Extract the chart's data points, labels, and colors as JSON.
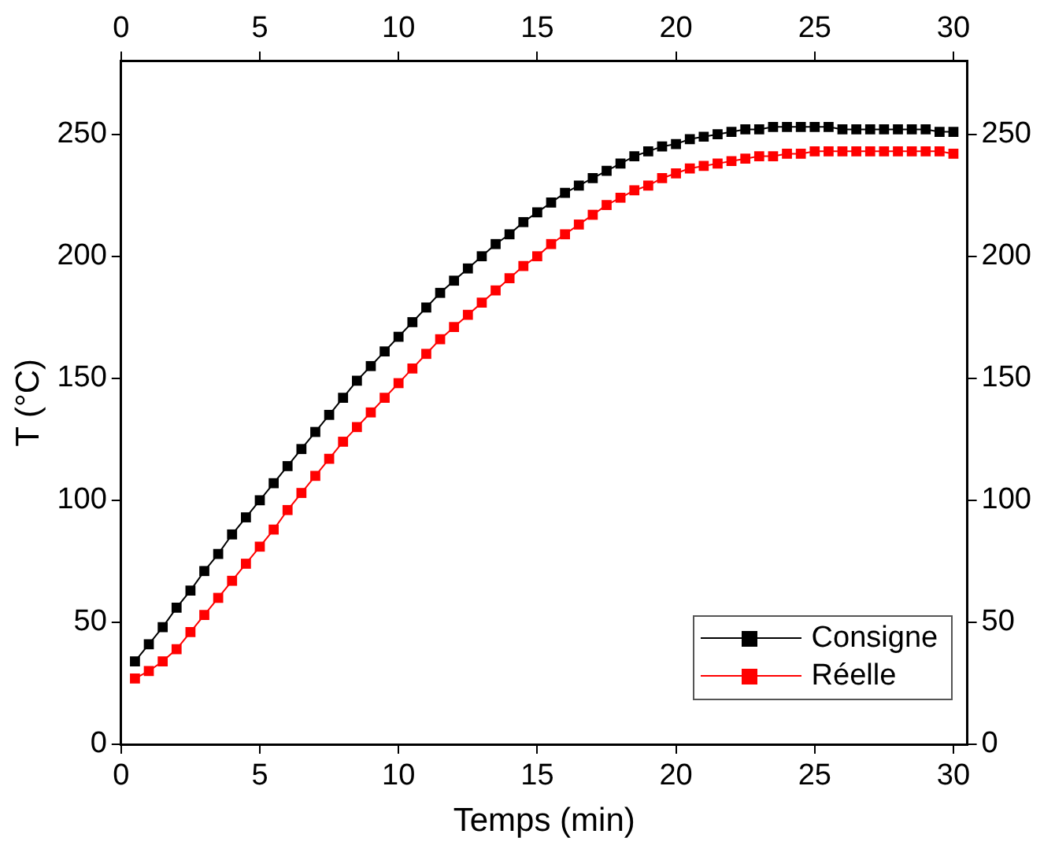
{
  "chart_data": {
    "type": "line",
    "xlabel": "Temps (min)",
    "ylabel": "T (°C)",
    "x": [
      0.5,
      1,
      1.5,
      2,
      2.5,
      3,
      3.5,
      4,
      4.5,
      5,
      5.5,
      6,
      6.5,
      7,
      7.5,
      8,
      8.5,
      9,
      9.5,
      10,
      10.5,
      11,
      11.5,
      12,
      12.5,
      13,
      13.5,
      14,
      14.5,
      15,
      15.5,
      16,
      16.5,
      17,
      17.5,
      18,
      18.5,
      19,
      19.5,
      20,
      20.5,
      21,
      21.5,
      22,
      22.5,
      23,
      23.5,
      24,
      24.5,
      25,
      25.5,
      26,
      26.5,
      27,
      27.5,
      28,
      28.5,
      29,
      29.5,
      30
    ],
    "series": [
      {
        "name": "Consigne",
        "color": "#000000",
        "values": [
          34,
          41,
          48,
          56,
          63,
          71,
          78,
          86,
          93,
          100,
          107,
          114,
          121,
          128,
          135,
          142,
          149,
          155,
          161,
          167,
          173,
          179,
          185,
          190,
          195,
          200,
          205,
          209,
          214,
          218,
          222,
          226,
          229,
          232,
          235,
          238,
          241,
          243,
          245,
          246,
          248,
          249,
          250,
          251,
          252,
          252,
          253,
          253,
          253,
          253,
          253,
          252,
          252,
          252,
          252,
          252,
          252,
          252,
          251,
          251
        ]
      },
      {
        "name": "Réelle",
        "color": "#ff0000",
        "values": [
          27,
          30,
          34,
          39,
          46,
          53,
          60,
          67,
          74,
          81,
          88,
          96,
          103,
          110,
          117,
          124,
          130,
          136,
          142,
          148,
          154,
          160,
          166,
          171,
          176,
          181,
          186,
          191,
          196,
          200,
          205,
          209,
          213,
          217,
          221,
          224,
          227,
          229,
          232,
          234,
          236,
          237,
          238,
          239,
          240,
          241,
          241,
          242,
          242,
          243,
          243,
          243,
          243,
          243,
          243,
          243,
          243,
          243,
          243,
          242
        ]
      }
    ],
    "xlim": [
      0,
      30.5
    ],
    "xticks": [
      0,
      5,
      10,
      15,
      20,
      25,
      30
    ],
    "x2lim": [
      0,
      30.5
    ],
    "x2ticks": [
      0,
      5,
      10,
      15,
      20,
      25,
      30
    ],
    "ylim": [
      0,
      280
    ],
    "yticks": [
      0,
      50,
      100,
      150,
      200,
      250
    ],
    "y2lim": [
      0,
      280
    ],
    "y2ticks": [
      0,
      50,
      100,
      150,
      200,
      250
    ],
    "grid": false,
    "legend": "bottom right",
    "marker": "square",
    "line_style": "solid"
  }
}
